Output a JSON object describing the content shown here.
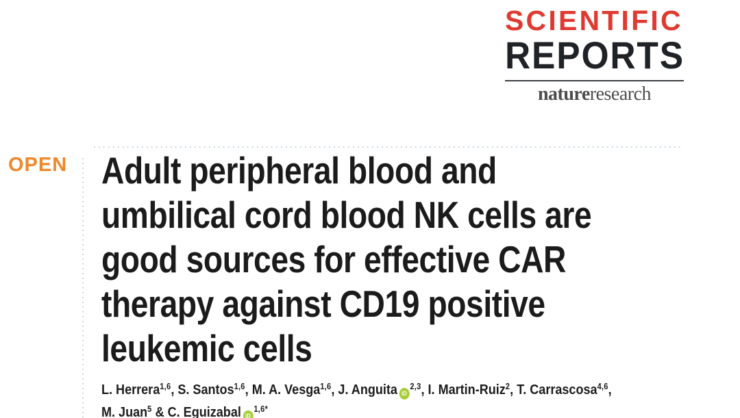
{
  "journal": {
    "name_line1": "SCIENTIFIC",
    "name_line2": "REPORTS",
    "publisher": {
      "part1": "nature",
      "part2": "research"
    }
  },
  "open_access_label": "OPEN",
  "article": {
    "title_lines": [
      "Adult peripheral blood and",
      "umbilical cord blood NK cells are",
      "good sources for effective CAR",
      "therapy against CD19 positive",
      "leukemic cells"
    ],
    "authors": [
      {
        "name": "L. Herrera",
        "sup": "1,6",
        "sep": ", ",
        "orcid": false
      },
      {
        "name": "S. Santos",
        "sup": "1,6",
        "sep": ", ",
        "orcid": false
      },
      {
        "name": "M. A. Vesga",
        "sup": "1,6",
        "sep": ", ",
        "orcid": false
      },
      {
        "name": "J. Anguita",
        "sup": "2,3",
        "sep": ", ",
        "orcid": true
      },
      {
        "name": "I. Martin-Ruiz",
        "sup": "2",
        "sep": ", ",
        "orcid": false
      },
      {
        "name": "T. Carrascosa",
        "sup": "4,6",
        "sep": ",",
        "orcid": false
      },
      {
        "name": "M. Juan",
        "sup": "5",
        "sep": " & ",
        "orcid": false
      },
      {
        "name": "C. Eguizabal",
        "sup": "1,6*",
        "sep": "",
        "orcid": true
      }
    ]
  },
  "icons": {
    "orcid": {
      "label": "iD"
    }
  },
  "colors": {
    "journal_red": "#e0392f",
    "journal_dark": "#1f2226",
    "publisher_gray": "#4d4d4d",
    "open_orange": "#f0872a",
    "orcid_green": "#a6ce39",
    "dotted_line": "#b9ccd8",
    "text_dark": "#1b1b1b"
  }
}
